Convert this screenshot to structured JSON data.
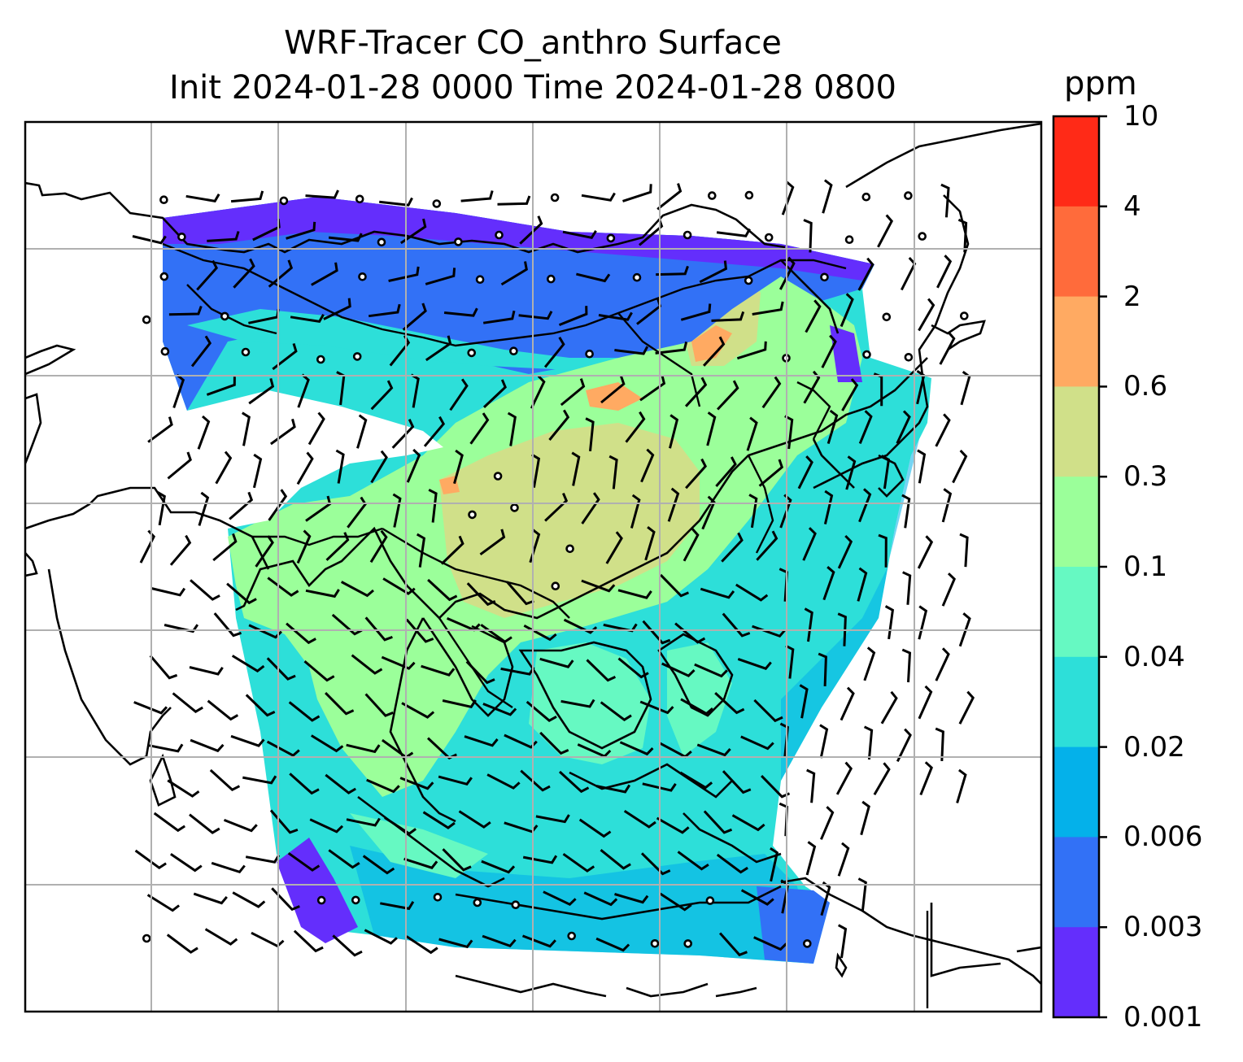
{
  "title": {
    "line1": "WRF-Tracer CO_anthro Surface",
    "line2": "Init 2024-01-28 0000 Time 2024-01-28 0800"
  },
  "colorbar": {
    "unit": "ppm",
    "labels": [
      "10",
      "4",
      "2",
      "0.6",
      "0.3",
      "0.1",
      "0.04",
      "0.02",
      "0.006",
      "0.003",
      "0.001"
    ],
    "colors": [
      "#ff2a17",
      "#ff6b3b",
      "#ffaa62",
      "#d0e089",
      "#9bff9a",
      "#66f9c2",
      "#2ddfd9",
      "#04b1ea",
      "#3271f6",
      "#642efc"
    ]
  },
  "map": {
    "field": "CO_anthro",
    "ocean_color": "#2ddfd9",
    "land_color": "#9bff9a",
    "gridlines": true,
    "overlays": [
      "coastlines",
      "country-borders",
      "wind-barbs"
    ]
  }
}
